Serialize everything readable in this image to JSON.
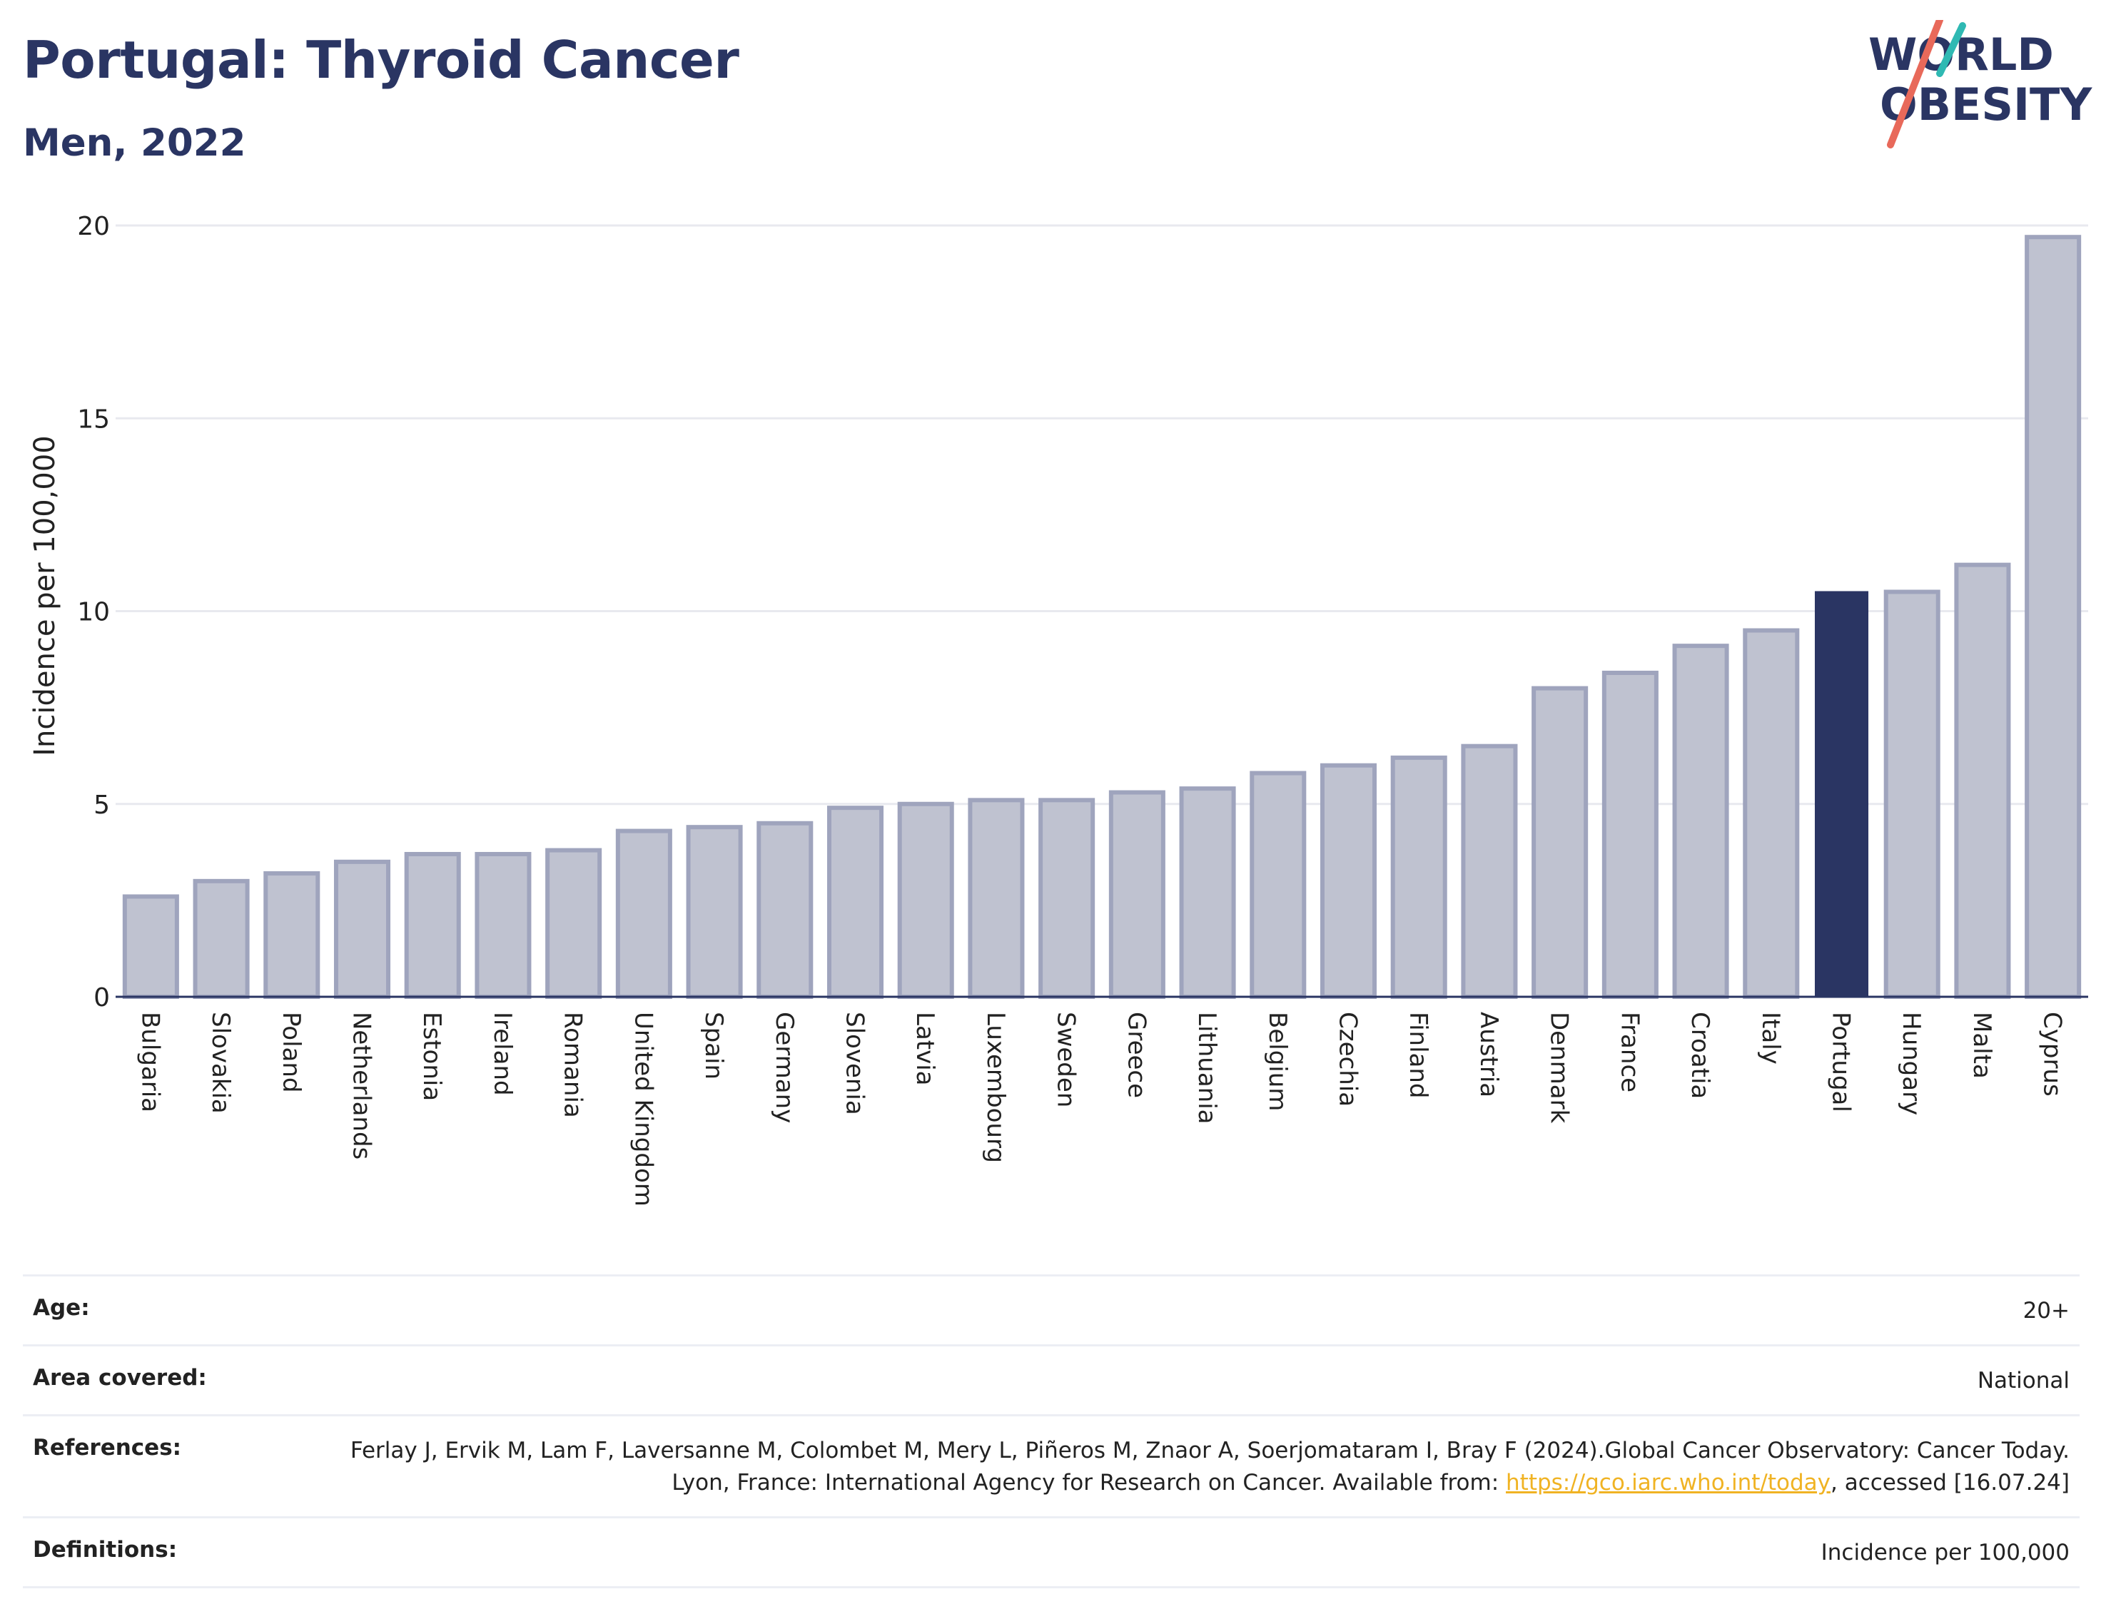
{
  "header": {
    "title": "Portugal: Thyroid Cancer",
    "subtitle": "Men, 2022"
  },
  "logo": {
    "line1": "WORLD",
    "line2": "OBESITY"
  },
  "colors": {
    "highlight": "#2a3563",
    "bar_fill": "#bfc2d0",
    "bar_edge": "#9fa4bd",
    "grid": "#e8e9ef",
    "logo_teal": "#2fb9b3",
    "logo_coral": "#e8695a"
  },
  "chart_data": {
    "type": "bar",
    "title": "Portugal: Thyroid Cancer",
    "subtitle": "Men, 2022",
    "xlabel": "",
    "ylabel": "Incidence per 100,000",
    "ylim": [
      0,
      20
    ],
    "yticks": [
      0,
      5,
      10,
      15,
      20
    ],
    "grid": true,
    "highlight": "Portugal",
    "categories": [
      "Bulgaria",
      "Slovakia",
      "Poland",
      "Netherlands",
      "Estonia",
      "Ireland",
      "Romania",
      "United Kingdom",
      "Spain",
      "Germany",
      "Slovenia",
      "Latvia",
      "Luxembourg",
      "Sweden",
      "Greece",
      "Lithuania",
      "Belgium",
      "Czechia",
      "Finland",
      "Austria",
      "Denmark",
      "France",
      "Croatia",
      "Italy",
      "Portugal",
      "Hungary",
      "Malta",
      "Cyprus"
    ],
    "values": [
      2.6,
      3.0,
      3.2,
      3.5,
      3.7,
      3.7,
      3.8,
      4.3,
      4.4,
      4.5,
      4.9,
      5.0,
      5.1,
      5.1,
      5.3,
      5.4,
      5.8,
      6.0,
      6.2,
      6.5,
      8.0,
      8.4,
      9.1,
      9.5,
      10.5,
      10.5,
      11.2,
      19.7
    ]
  },
  "info": {
    "rows": [
      {
        "label": "Age:",
        "value": "20+"
      },
      {
        "label": "Area covered:",
        "value": "National"
      },
      {
        "label": "References:",
        "value_before": "Ferlay J, Ervik M, Lam F, Laversanne M, Colombet M, Mery L, Piñeros M, Znaor A, Soerjomataram I, Bray F (2024).Global Cancer Observatory: Cancer Today. Lyon, France: International Agency for Research on Cancer. Available from: ",
        "link": "https://gco.iarc.who.int/today",
        "value_after": ", accessed [16.07.24]"
      },
      {
        "label": "Definitions:",
        "value": "Incidence per 100,000"
      }
    ]
  }
}
